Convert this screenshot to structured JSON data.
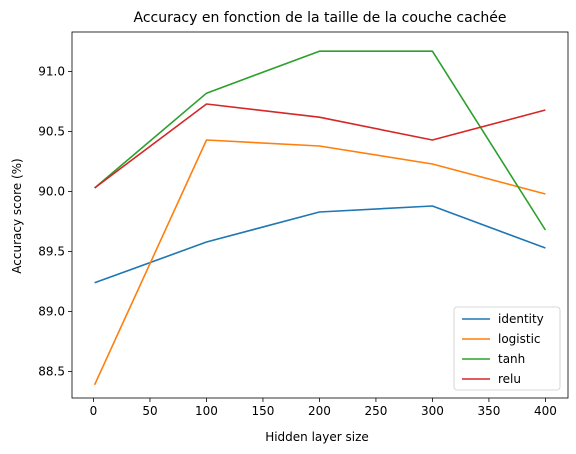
{
  "chart_data": {
    "type": "line",
    "title": "Accuracy en fonction de la taille de la couche cachée",
    "xlabel": "Hidden layer size",
    "ylabel": "Accuracy score (%)",
    "x": [
      1,
      100,
      200,
      300,
      400
    ],
    "xlim": [
      -19,
      420
    ],
    "ylim": [
      88.28,
      91.33
    ],
    "xticks": [
      0,
      50,
      100,
      150,
      200,
      250,
      300,
      350,
      400
    ],
    "yticks": [
      88.5,
      89.0,
      89.5,
      90.0,
      90.5,
      91.0
    ],
    "ytick_labels": [
      "88.5",
      "89.0",
      "89.5",
      "90.0",
      "90.5",
      "91.0"
    ],
    "grid": false,
    "legend_position": "lower right",
    "series": [
      {
        "name": "identity",
        "color": "#1f77b4",
        "values": [
          89.24,
          89.58,
          89.83,
          89.88,
          89.53
        ]
      },
      {
        "name": "logistic",
        "color": "#ff7f0e",
        "values": [
          88.39,
          90.43,
          90.38,
          90.23,
          89.98
        ]
      },
      {
        "name": "tanh",
        "color": "#2ca02c",
        "values": [
          90.03,
          90.82,
          91.17,
          91.17,
          89.68
        ]
      },
      {
        "name": "relu",
        "color": "#d62728",
        "values": [
          90.03,
          90.73,
          90.62,
          90.43,
          90.68
        ]
      }
    ]
  }
}
